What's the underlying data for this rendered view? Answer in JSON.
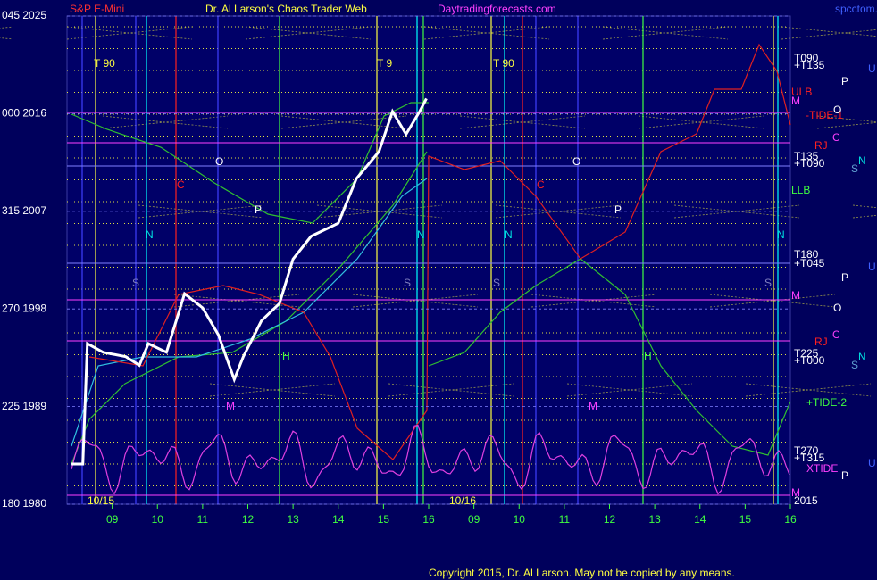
{
  "chart_data": {
    "type": "line",
    "title": "Dr. Al Larson's Chaos Trader Web",
    "subtitle": "S&P E-Mini",
    "source": "Daytradingforecasts.com",
    "file": "spcctom.txt",
    "copyright": "Copyright 2015, Dr. Al Larson. May not be copied by any means.",
    "xlim": [
      8,
      16
    ],
    "xticks": [
      {
        "value": 9,
        "label": "09"
      },
      {
        "value": 10,
        "label": "10"
      },
      {
        "value": 11,
        "label": "11"
      },
      {
        "value": 12,
        "label": "12"
      },
      {
        "value": 13,
        "label": "13"
      },
      {
        "value": 14,
        "label": "14"
      },
      {
        "value": 15,
        "label": "15"
      },
      {
        "value": 16,
        "label": "16"
      }
    ],
    "x2ticks": [
      {
        "value": 9,
        "label": "09"
      },
      {
        "value": 10,
        "label": "10"
      },
      {
        "value": 11,
        "label": "11"
      },
      {
        "value": 12,
        "label": "12"
      },
      {
        "value": 13,
        "label": "13"
      },
      {
        "value": 14,
        "label": "14"
      },
      {
        "value": 15,
        "label": "15"
      },
      {
        "value": 16,
        "label": "16"
      }
    ],
    "dates": [
      "10/15",
      "10/16"
    ],
    "ylim": [
      1980,
      2025
    ],
    "yticks": [
      {
        "value": 2025,
        "label": "045 2025"
      },
      {
        "value": 2016,
        "label": "000 2016"
      },
      {
        "value": 2007,
        "label": "315 2007"
      },
      {
        "value": 1998,
        "label": "270 1998"
      },
      {
        "value": 1989,
        "label": "225 1989"
      },
      {
        "value": 1980,
        "label": "180 1980"
      }
    ],
    "series": [
      {
        "color": "#ffffff",
        "x": [
          8.1,
          8.35,
          8.45,
          8.8,
          9.3,
          9.6,
          9.8,
          10.2,
          10.6,
          11.0,
          11.35,
          11.7,
          11.9,
          12.3,
          12.7,
          13.0,
          13.4,
          14.0,
          14.4,
          14.9,
          15.2,
          15.5,
          15.8,
          15.95
        ],
        "values": [
          1983.7,
          1983.7,
          1994.8,
          1994.0,
          1993.6,
          1992.8,
          1994.8,
          1994.0,
          1999.4,
          1998.1,
          1995.6,
          1991.5,
          1993.6,
          1996.9,
          1998.5,
          2002.6,
          2004.7,
          2005.9,
          2010.0,
          2012.5,
          2016.2,
          2014.1,
          2016.2,
          2017.4
        ]
      }
    ],
    "right_labels": [
      "T090",
      "+T135",
      "ULB",
      "M",
      "-TIDE-1",
      "RJ",
      "C",
      "T135",
      "+T090",
      "LLB",
      "T180",
      "+T045",
      "M",
      "RJ",
      "C",
      "T225",
      "+T000",
      "+TIDE-2",
      "T270",
      "+T315",
      "XTIDE",
      "M",
      "2015"
    ],
    "side_letters": [
      "U",
      "P",
      "O",
      "S",
      "N",
      "U",
      "P",
      "O",
      "S",
      "N",
      "U",
      "P"
    ],
    "annotations": [
      "T  90",
      "T  9",
      "T  90",
      "O",
      "C",
      "P",
      "N",
      "N",
      "S",
      "S",
      "H",
      "M",
      "O",
      "C",
      "P",
      "N",
      "N",
      "S",
      "S",
      "H",
      "M"
    ]
  }
}
